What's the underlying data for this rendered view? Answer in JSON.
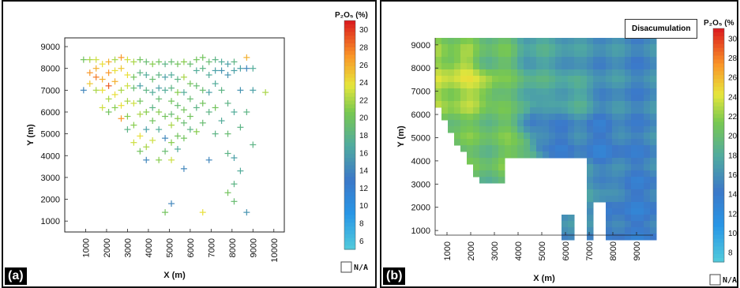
{
  "chart_data": [
    {
      "type": "scatter",
      "panel_label": "(a)",
      "xlabel": "X (m)",
      "ylabel": "Y (m)",
      "xlim": [
        0,
        10500
      ],
      "ylim": [
        500,
        9400
      ],
      "x_ticks": [
        "1000",
        "2000",
        "3000",
        "4000",
        "5000",
        "6000",
        "7000",
        "8000",
        "9000",
        "10000"
      ],
      "y_ticks": [
        "9000",
        "8000",
        "7000",
        "6000",
        "5000",
        "4000",
        "3000",
        "2000",
        "1000"
      ],
      "colorbar": {
        "title": "P₂O₅ (%)",
        "range": [
          5,
          31
        ],
        "ticks": [
          "30",
          "28",
          "26",
          "24",
          "22",
          "20",
          "18",
          "16",
          "14",
          "12",
          "10",
          "8",
          "6"
        ],
        "na_label": "N/A"
      },
      "points": [
        [
          900,
          8400,
          20
        ],
        [
          900,
          7000,
          14
        ],
        [
          1200,
          8400,
          22
        ],
        [
          1200,
          7800,
          27
        ],
        [
          1200,
          7300,
          25
        ],
        [
          1500,
          8400,
          23
        ],
        [
          1500,
          8000,
          26
        ],
        [
          1500,
          7600,
          28
        ],
        [
          1500,
          7000,
          22
        ],
        [
          1800,
          8200,
          24
        ],
        [
          1800,
          7500,
          26
        ],
        [
          1800,
          7000,
          24
        ],
        [
          1800,
          6200,
          23
        ],
        [
          2100,
          8300,
          26
        ],
        [
          2100,
          7800,
          27
        ],
        [
          2100,
          7200,
          29
        ],
        [
          2100,
          6600,
          22
        ],
        [
          2100,
          6000,
          20
        ],
        [
          2400,
          8400,
          22
        ],
        [
          2400,
          7900,
          24
        ],
        [
          2400,
          7400,
          26
        ],
        [
          2400,
          6800,
          24
        ],
        [
          2400,
          6200,
          21
        ],
        [
          2700,
          8500,
          27
        ],
        [
          2700,
          8000,
          25
        ],
        [
          2700,
          7000,
          22
        ],
        [
          2700,
          6300,
          24
        ],
        [
          2700,
          5700,
          27
        ],
        [
          3000,
          8400,
          23
        ],
        [
          3000,
          7700,
          24
        ],
        [
          3000,
          7200,
          23
        ],
        [
          3000,
          6500,
          22
        ],
        [
          3000,
          5800,
          21
        ],
        [
          3000,
          5200,
          18
        ],
        [
          3300,
          8300,
          22
        ],
        [
          3300,
          7600,
          20
        ],
        [
          3300,
          7100,
          19
        ],
        [
          3300,
          6400,
          23
        ],
        [
          3300,
          5400,
          21
        ],
        [
          3300,
          4600,
          23
        ],
        [
          3600,
          8400,
          20
        ],
        [
          3600,
          7800,
          18
        ],
        [
          3600,
          7200,
          16
        ],
        [
          3600,
          6500,
          20
        ],
        [
          3600,
          5900,
          22
        ],
        [
          3600,
          4900,
          24
        ],
        [
          3600,
          4200,
          20
        ],
        [
          3900,
          8300,
          19
        ],
        [
          3900,
          7700,
          17
        ],
        [
          3900,
          7000,
          18
        ],
        [
          3900,
          6000,
          21
        ],
        [
          3900,
          5200,
          16
        ],
        [
          3900,
          4400,
          22
        ],
        [
          3900,
          3800,
          14
        ],
        [
          4200,
          8200,
          21
        ],
        [
          4200,
          7500,
          19
        ],
        [
          4200,
          6900,
          17
        ],
        [
          4200,
          6200,
          18
        ],
        [
          4200,
          5600,
          20
        ],
        [
          4200,
          4700,
          23
        ],
        [
          4500,
          8300,
          20
        ],
        [
          4500,
          7700,
          18
        ],
        [
          4500,
          7100,
          16
        ],
        [
          4500,
          6600,
          19
        ],
        [
          4500,
          6000,
          21
        ],
        [
          4500,
          5200,
          17
        ],
        [
          4500,
          3800,
          21
        ],
        [
          4800,
          8200,
          18
        ],
        [
          4800,
          7600,
          16
        ],
        [
          4800,
          7000,
          17
        ],
        [
          4800,
          5800,
          20
        ],
        [
          4800,
          4800,
          14
        ],
        [
          4800,
          4200,
          19
        ],
        [
          4800,
          1400,
          20
        ],
        [
          5100,
          8300,
          19
        ],
        [
          5100,
          7700,
          17
        ],
        [
          5100,
          7100,
          18
        ],
        [
          5100,
          6500,
          20
        ],
        [
          5100,
          5900,
          19
        ],
        [
          5100,
          5400,
          22
        ],
        [
          5100,
          4600,
          21
        ],
        [
          5100,
          3800,
          23
        ],
        [
          5100,
          1800,
          14
        ],
        [
          5400,
          8200,
          20
        ],
        [
          5400,
          7500,
          18
        ],
        [
          5400,
          6900,
          21
        ],
        [
          5400,
          6300,
          19
        ],
        [
          5400,
          5700,
          21
        ],
        [
          5400,
          4900,
          20
        ],
        [
          5400,
          4300,
          17
        ],
        [
          5700,
          8300,
          21
        ],
        [
          5700,
          7600,
          22
        ],
        [
          5700,
          6900,
          17
        ],
        [
          5700,
          6100,
          20
        ],
        [
          5700,
          5500,
          19
        ],
        [
          5700,
          4800,
          20
        ],
        [
          5700,
          3400,
          14
        ],
        [
          6000,
          8200,
          19
        ],
        [
          6000,
          7300,
          20
        ],
        [
          6000,
          6600,
          19
        ],
        [
          6000,
          5800,
          20
        ],
        [
          6000,
          5200,
          18
        ],
        [
          6300,
          8400,
          20
        ],
        [
          6300,
          7900,
          17
        ],
        [
          6300,
          7200,
          19
        ],
        [
          6300,
          6200,
          18
        ],
        [
          6300,
          5100,
          21
        ],
        [
          6600,
          8500,
          20
        ],
        [
          6600,
          8000,
          18
        ],
        [
          6600,
          7000,
          19
        ],
        [
          6600,
          6400,
          20
        ],
        [
          6600,
          5500,
          19
        ],
        [
          6600,
          1400,
          24
        ],
        [
          6900,
          8300,
          19
        ],
        [
          6900,
          7700,
          17
        ],
        [
          6900,
          6900,
          16
        ],
        [
          6900,
          6000,
          18
        ],
        [
          6900,
          3800,
          14
        ],
        [
          7200,
          8400,
          18
        ],
        [
          7200,
          7900,
          16
        ],
        [
          7200,
          7300,
          17
        ],
        [
          7200,
          6200,
          20
        ],
        [
          7200,
          5000,
          18
        ],
        [
          7500,
          8300,
          17
        ],
        [
          7500,
          7900,
          15
        ],
        [
          7500,
          7000,
          18
        ],
        [
          7500,
          5600,
          17
        ],
        [
          7800,
          8200,
          16
        ],
        [
          7800,
          7700,
          15
        ],
        [
          7800,
          6400,
          18
        ],
        [
          7800,
          5000,
          19
        ],
        [
          7800,
          4100,
          18
        ],
        [
          7800,
          2300,
          20
        ],
        [
          8100,
          8300,
          18
        ],
        [
          8100,
          7900,
          16
        ],
        [
          8100,
          6000,
          17
        ],
        [
          8100,
          3900,
          16
        ],
        [
          8100,
          2700,
          18
        ],
        [
          8100,
          1900,
          19
        ],
        [
          8400,
          8000,
          16
        ],
        [
          8400,
          7000,
          15
        ],
        [
          8400,
          5300,
          18
        ],
        [
          8400,
          3300,
          17
        ],
        [
          8700,
          8500,
          26
        ],
        [
          8700,
          8000,
          14
        ],
        [
          8700,
          6000,
          18
        ],
        [
          8700,
          1400,
          15
        ],
        [
          9000,
          8000,
          17
        ],
        [
          9000,
          7000,
          16
        ],
        [
          9000,
          4500,
          18
        ],
        [
          9600,
          6900,
          22
        ]
      ]
    },
    {
      "type": "heatmap",
      "panel_label": "(b)",
      "legend_box": "Disacumulation",
      "xlabel": "X (m)",
      "ylabel": "Y (m)",
      "xlim": [
        500,
        9700
      ],
      "ylim": [
        800,
        9300
      ],
      "x_ticks": [
        "1000",
        "2000",
        "3000",
        "4000",
        "5000",
        "6000",
        "7000",
        "8000",
        "9000"
      ],
      "y_ticks": [
        "9000",
        "8000",
        "7000",
        "6000",
        "5000",
        "4000",
        "3000",
        "2000",
        "1000"
      ],
      "colorbar": {
        "title": "P₂O₅ (%",
        "range": [
          7,
          31
        ],
        "ticks": [
          "30",
          "28",
          "26",
          "24",
          "22",
          "20",
          "18",
          "16",
          "14",
          "12",
          "10",
          "8"
        ],
        "na_label": "N/A"
      },
      "features": [
        {
          "x": 1500,
          "y": 8000,
          "v": 28
        },
        {
          "x": 2500,
          "y": 7300,
          "v": 27
        },
        {
          "x": 1300,
          "y": 8700,
          "v": 24
        },
        {
          "x": 2600,
          "y": 8500,
          "v": 22
        },
        {
          "x": 3500,
          "y": 7200,
          "v": 22
        },
        {
          "x": 4200,
          "y": 6300,
          "v": 21
        },
        {
          "x": 3300,
          "y": 5600,
          "v": 23
        },
        {
          "x": 4100,
          "y": 4400,
          "v": 24
        },
        {
          "x": 6000,
          "y": 7000,
          "v": 19
        },
        {
          "x": 5200,
          "y": 4900,
          "v": 13
        },
        {
          "x": 7600,
          "y": 4800,
          "v": 13
        },
        {
          "x": 4800,
          "y": 6000,
          "v": 14
        },
        {
          "x": 8500,
          "y": 6000,
          "v": 15
        },
        {
          "x": 6800,
          "y": 2800,
          "v": 17
        },
        {
          "x": 8700,
          "y": 1800,
          "v": 13
        },
        {
          "x": 9200,
          "y": 8500,
          "v": 15
        },
        {
          "x": 7000,
          "y": 8200,
          "v": 16
        },
        {
          "x": 5000,
          "y": 8500,
          "v": 18
        }
      ]
    }
  ]
}
